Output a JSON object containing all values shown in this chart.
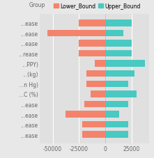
{
  "categories": [
    "...ease",
    "...ease",
    "...ease",
    "...rease",
    "...PPY)",
    "...(kg)",
    "...n Hg)",
    "...C (%)",
    "...ease",
    "...ease",
    "...ease",
    "...ease"
  ],
  "lower_bound": [
    -25000,
    -55000,
    -25000,
    -25000,
    -10000,
    -18000,
    -18000,
    -14000,
    -20000,
    -38000,
    -22000,
    -22000
  ],
  "upper_bound": [
    25000,
    17000,
    25000,
    25000,
    38000,
    28000,
    22000,
    30000,
    22000,
    13000,
    22000,
    22000
  ],
  "lower_color": "#F4836C",
  "upper_color": "#48C9C2",
  "bg_color": "#E8E8E8",
  "panel_bg": "#E0E0E0",
  "grid_color": "#FFFFFF",
  "bar_height": 0.65,
  "xlim": [
    -62000,
    42000
  ],
  "xticks": [
    -50000,
    -25000,
    0,
    25000
  ],
  "legend_labels": [
    "Lower_Bound",
    "Upper_Bound"
  ],
  "fontsize": 5.5
}
